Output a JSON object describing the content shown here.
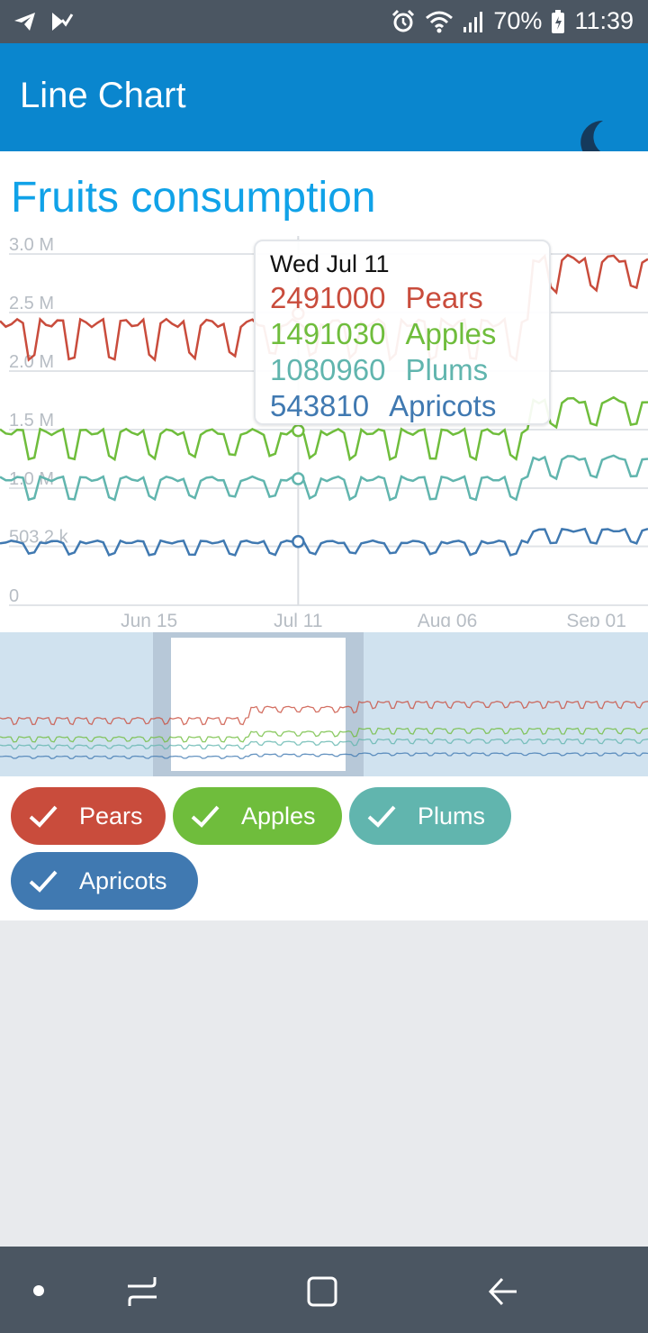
{
  "status_bar": {
    "battery": "70%",
    "time": "11:39",
    "icons": [
      "telegram-icon",
      "email-check-icon",
      "alarm-icon",
      "wifi-icon",
      "signal-icon",
      "battery-charging-icon"
    ]
  },
  "app_bar": {
    "title": "Line Chart",
    "theme_toggle_icon": "moon-icon"
  },
  "chart": {
    "title": "Fruits consumption",
    "colors": {
      "pears": "#C94C3C",
      "apples": "#6FBD3C",
      "plums": "#61B5AE",
      "apricots": "#4079B1"
    }
  },
  "tooltip": {
    "date": "Wed Jul 11",
    "rows": [
      {
        "value": "2491000",
        "name": "Pears"
      },
      {
        "value": "1491030",
        "name": "Apples"
      },
      {
        "value": "1080960",
        "name": "Plums"
      },
      {
        "value": "543810",
        "name": "Apricots"
      }
    ]
  },
  "chart_data": {
    "type": "line",
    "title": "Fruits consumption",
    "y_tick_labels": [
      "0",
      "503.2 k",
      "1.0 M",
      "1.5 M",
      "2.0 M",
      "2.5 M",
      "3.0 M"
    ],
    "y_ticks": [
      0,
      503200,
      1000000,
      1500000,
      2000000,
      2500000,
      3000000
    ],
    "x_tick_labels": [
      "Jun 15",
      "Jul 11",
      "Aug 06",
      "Sep 01"
    ],
    "x_tick_positions": [
      "2018-06-15",
      "2018-07-11",
      "2018-08-06",
      "2018-09-01"
    ],
    "x_range": [
      "2018-05-20",
      "2018-09-10"
    ],
    "ylim": [
      0,
      3000000
    ],
    "grid": true,
    "highlight": {
      "date": "2018-07-11",
      "values": [
        2491000,
        1491030,
        1080960,
        543810
      ]
    },
    "series": [
      {
        "name": "Pears",
        "color": "#C94C3C",
        "weekday": 2410000,
        "weekend": 2130000,
        "late_weekday": 2960000,
        "late_weekend": 2700000
      },
      {
        "name": "Apples",
        "color": "#6FBD3C",
        "weekday": 1480000,
        "weekend": 1270000,
        "late_weekday": 1750000,
        "late_weekend": 1530000
      },
      {
        "name": "Plums",
        "color": "#61B5AE",
        "weekday": 1080000,
        "weekend": 920000,
        "late_weekday": 1260000,
        "late_weekend": 1090000
      },
      {
        "name": "Apricots",
        "color": "#4079B1",
        "weekday": 540000,
        "weekend": 440000,
        "late_weekday": 640000,
        "late_weekend": 540000
      }
    ]
  },
  "navigator": {
    "window_start": "2018-05-20",
    "window_end": "2018-09-10"
  },
  "filters": [
    {
      "label": "Pears",
      "checked": true,
      "color": "#C94C3C"
    },
    {
      "label": "Apples",
      "checked": true,
      "color": "#6FBD3C"
    },
    {
      "label": "Plums",
      "checked": true,
      "color": "#61B5AE"
    },
    {
      "label": "Apricots",
      "checked": true,
      "color": "#4079B1"
    }
  ],
  "nav_bar": {
    "icons": [
      "dot-icon",
      "recent-apps-icon",
      "home-icon",
      "back-icon"
    ]
  }
}
